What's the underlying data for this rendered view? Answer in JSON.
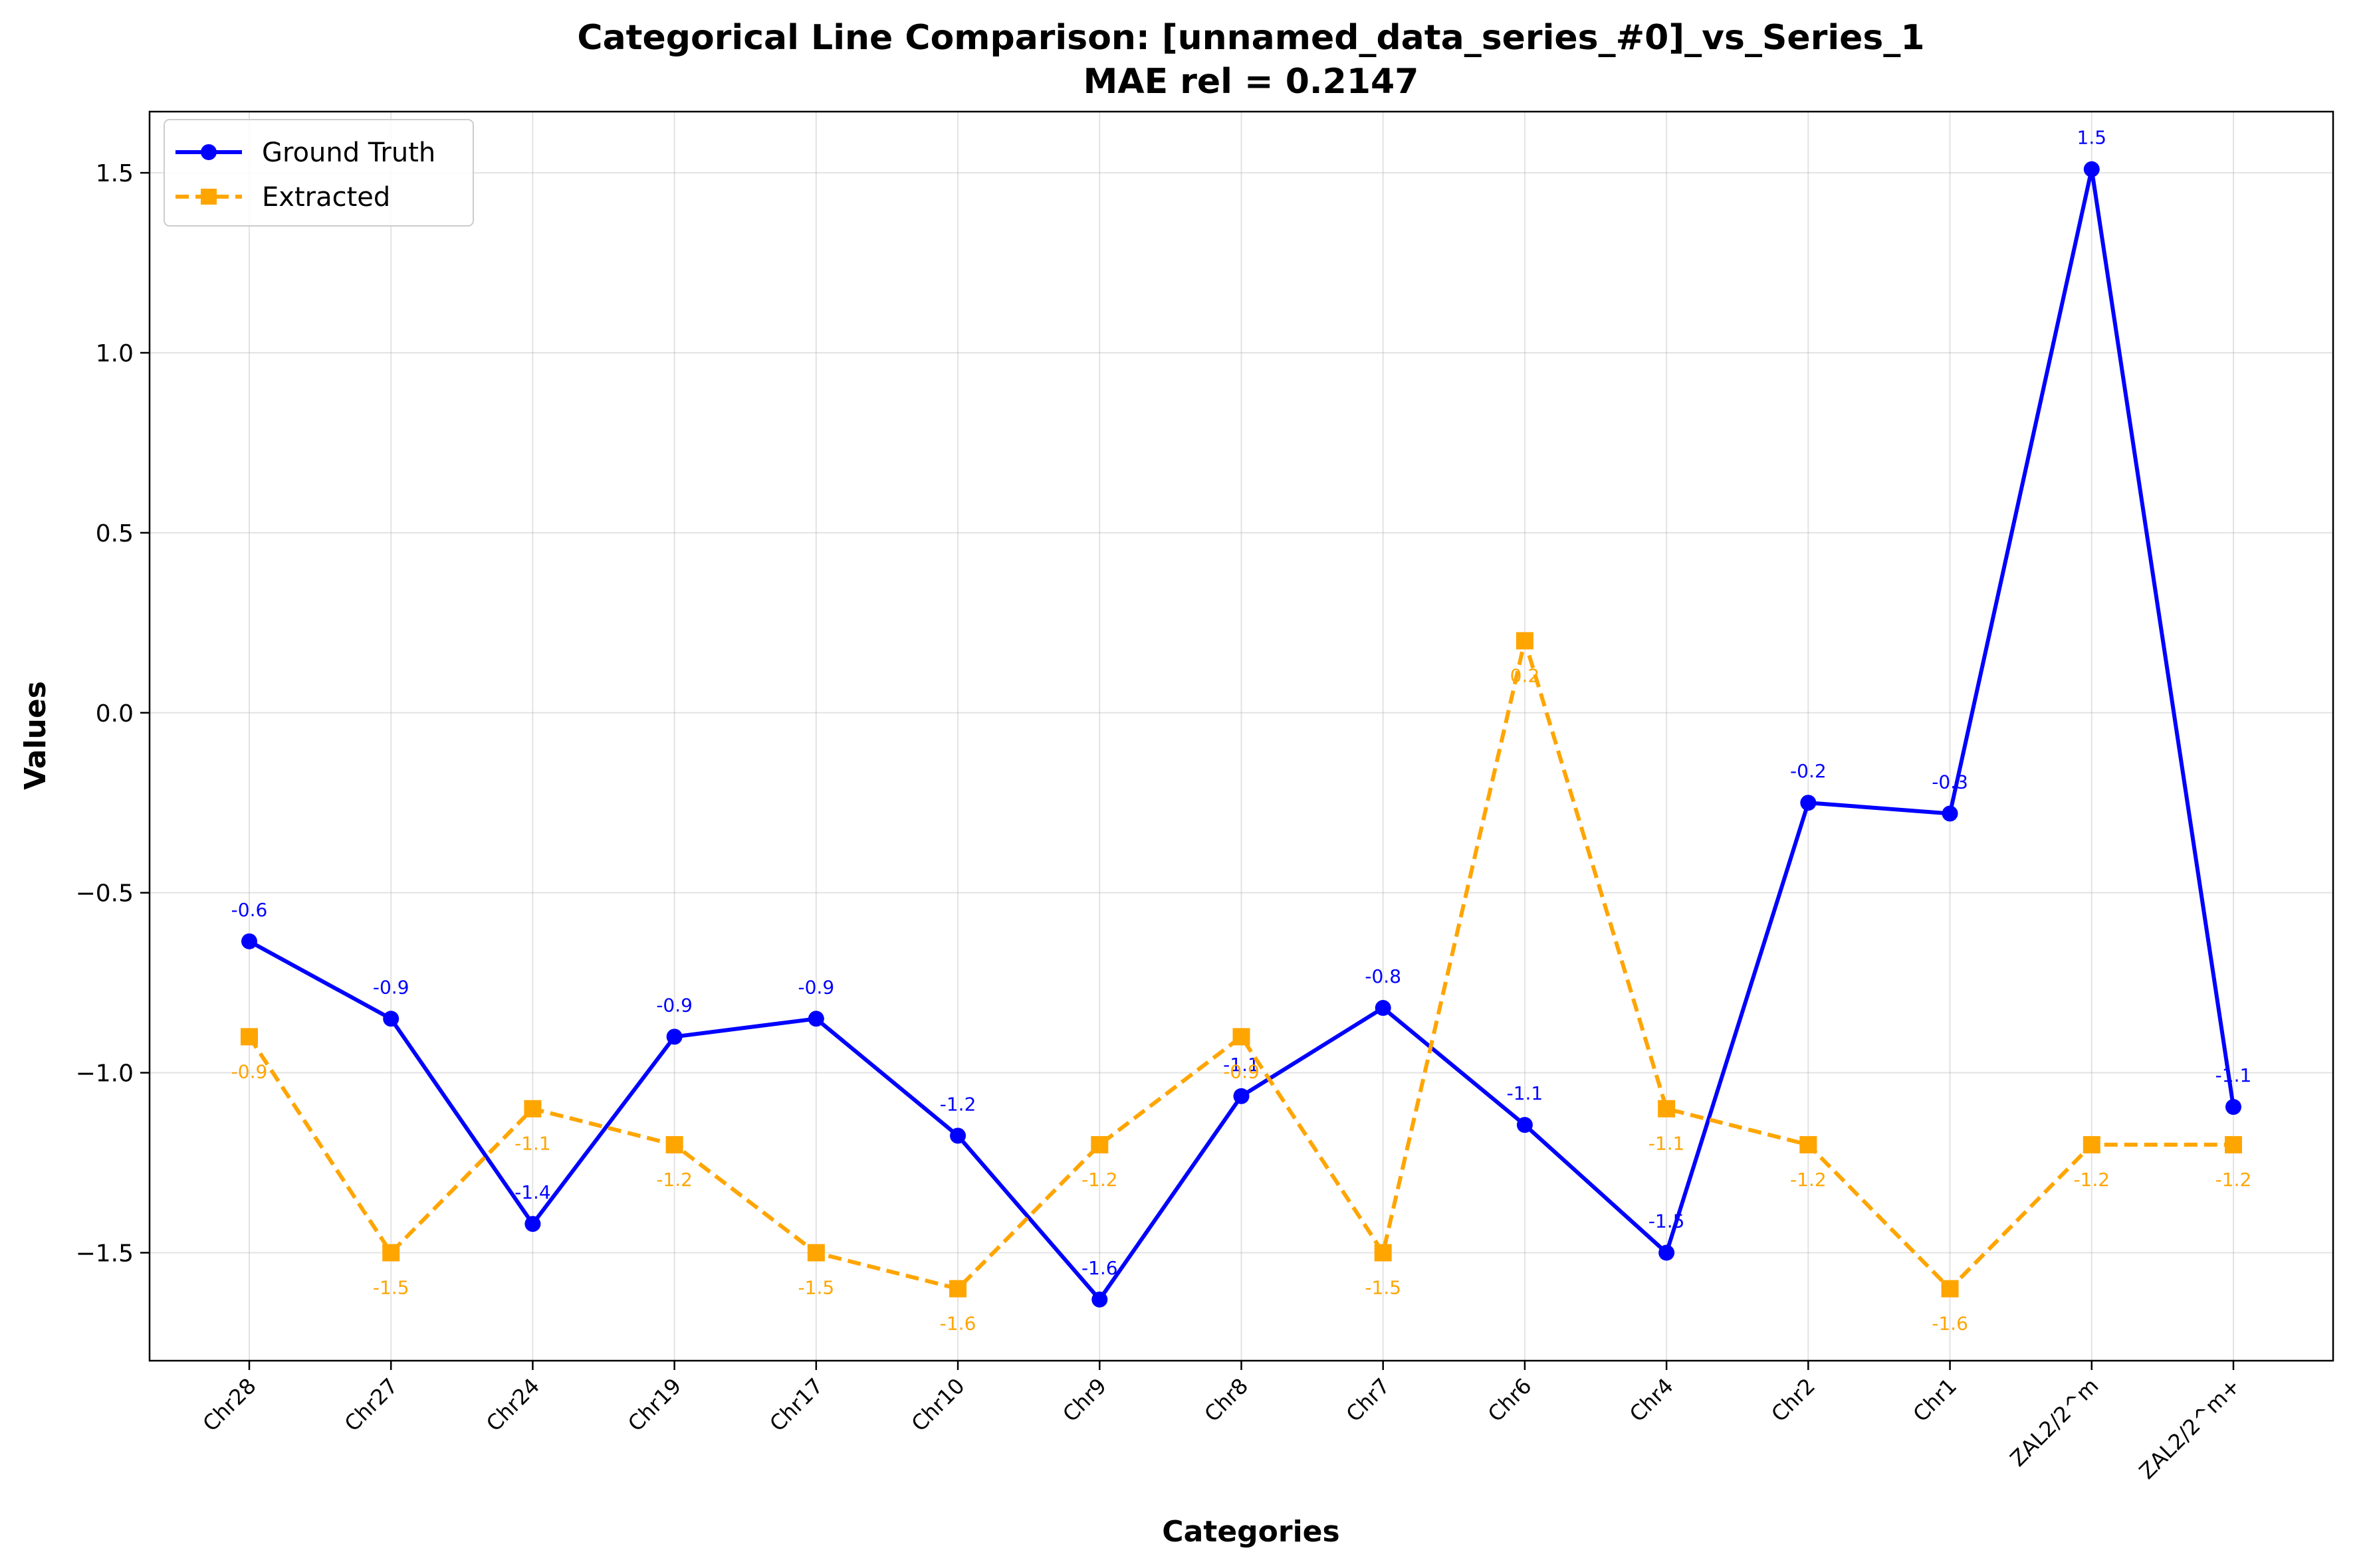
{
  "chart_data": {
    "type": "line",
    "title": "Categorical Line Comparison: [unnamed_data_series_#0]_vs_Series_1",
    "subtitle": "MAE rel = 0.2147",
    "xlabel": "Categories",
    "ylabel": "Values",
    "ylim": [
      -1.8,
      1.67
    ],
    "yticks": [
      1.5,
      1.0,
      0.5,
      0.0,
      -0.5,
      -1.0,
      -1.5
    ],
    "ytick_labels": [
      "1.5",
      "1.0",
      "0.5",
      "0.0",
      "−0.5",
      "−1.0",
      "−1.5"
    ],
    "grid": true,
    "legend_position": "top-left",
    "categories": [
      "Chr28",
      "Chr27",
      "Chr24",
      "Chr19",
      "Chr17",
      "Chr10",
      "Chr9",
      "Chr8",
      "Chr7",
      "Chr6",
      "Chr4",
      "Chr2",
      "Chr1",
      "ZAL2/2^m",
      "ZAL2/2^m+"
    ],
    "series": [
      {
        "name": "Ground Truth",
        "color": "#0000ff",
        "line_style": "solid",
        "marker": "circle",
        "label_position": "above",
        "values": [
          -0.635,
          -0.85,
          -1.42,
          -0.9,
          -0.85,
          -1.175,
          -1.63,
          -1.065,
          -0.82,
          -1.145,
          -1.5,
          -0.25,
          -0.28,
          1.51,
          -1.095
        ],
        "labels": [
          "-0.6",
          "-0.9",
          "-1.4",
          "-0.9",
          "-0.9",
          "-1.2",
          "-1.6",
          "-1.1",
          "-0.8",
          "-1.1",
          "-1.5",
          "-0.2",
          "-0.3",
          "1.5",
          "-1.1"
        ]
      },
      {
        "name": "Extracted",
        "color": "#ffa500",
        "line_style": "dashed",
        "marker": "square",
        "label_position": "below",
        "values": [
          -0.9,
          -1.5,
          -1.1,
          -1.2,
          -1.5,
          -1.6,
          -1.2,
          -0.9,
          -1.5,
          0.2,
          -1.1,
          -1.2,
          -1.6,
          -1.2,
          -1.2
        ],
        "labels": [
          "-0.9",
          "-1.5",
          "-1.1",
          "-1.2",
          "-1.5",
          "-1.6",
          "-1.2",
          "-0.9",
          "-1.5",
          "0.2",
          "-1.1",
          "-1.2",
          "-1.6",
          "-1.2",
          "-1.2"
        ]
      }
    ]
  }
}
